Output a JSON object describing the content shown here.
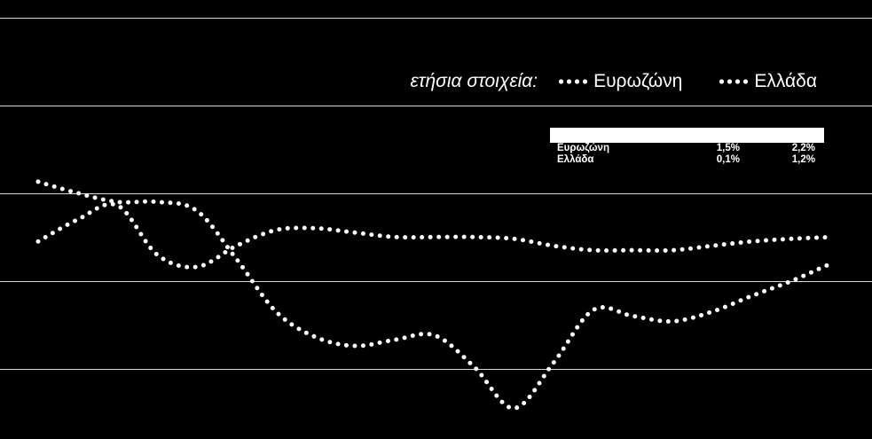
{
  "legend": {
    "prefix": "ετήσια στοιχεία:",
    "entries": [
      "Ευρωζώνη",
      "Ελλάδα"
    ]
  },
  "table": {
    "rows": [
      {
        "name": "Ευρωζώνη",
        "v1": "1,5%",
        "v2": "2,2%"
      },
      {
        "name": "Ελλάδα",
        "v1": "0,1%",
        "v2": "1,2%"
      }
    ]
  },
  "colors": {
    "background": "#000000",
    "line": "#ffffff",
    "grid": "#ffffff"
  },
  "chart_data": {
    "type": "line",
    "title": "",
    "xlabel": "",
    "ylabel": "",
    "grid": true,
    "legend_position": "top-right",
    "x": [
      0,
      1,
      2,
      3,
      4,
      5,
      6,
      7,
      8,
      9,
      10,
      11,
      12,
      13,
      14,
      15,
      16,
      17,
      18,
      19,
      20
    ],
    "ylim": [
      -5,
      0
    ],
    "gridlines": [
      -0.2,
      -1.2,
      -2.2,
      -3.2,
      -4.2
    ],
    "series": [
      {
        "name": "Ευρωζώνη",
        "values": [
          -2.75,
          -2.5,
          -2.34,
          -2.9,
          -3.04,
          -2.8,
          -2.62,
          -2.6,
          -2.65,
          -2.7,
          -2.7,
          -2.7,
          -2.72,
          -2.8,
          -2.85,
          -2.85,
          -2.85,
          -2.8,
          -2.75,
          -2.72,
          -2.7
        ]
      },
      {
        "name": "Ελλάδα",
        "values": [
          -2.07,
          -2.2,
          -2.3,
          -2.3,
          -2.4,
          -2.95,
          -3.55,
          -3.84,
          -3.94,
          -3.87,
          -3.82,
          -4.18,
          -4.65,
          -4.13,
          -3.53,
          -3.6,
          -3.66,
          -3.55,
          -3.37,
          -3.2,
          -3.0
        ]
      }
    ]
  }
}
